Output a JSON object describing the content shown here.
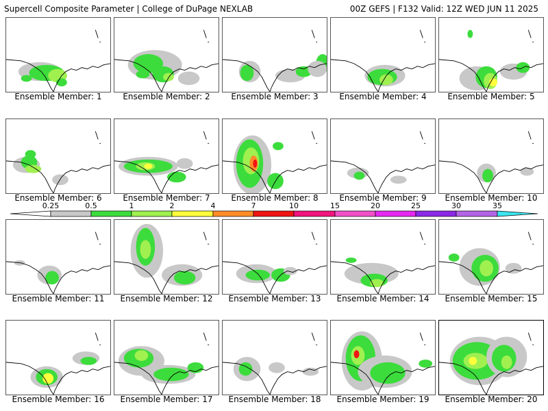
{
  "header": {
    "left": "Supercell Composite Parameter | College of DuPage NEXLAB",
    "right": "00Z GEFS | F132 Valid: 12Z WED JUN 11 2025"
  },
  "colorbar": {
    "ticks": [
      "0.25",
      "0.5",
      "1",
      "2",
      "4",
      "7",
      "10",
      "15",
      "20",
      "25",
      "30",
      "35"
    ],
    "colors": [
      "#ffffff",
      "#c8c8c8",
      "#3cdc3c",
      "#a0f050",
      "#ffff3c",
      "#ff8c28",
      "#f01414",
      "#f0147c",
      "#f050c8",
      "#e628f0",
      "#8c28e6",
      "#b464e6",
      "#3ce6f0"
    ]
  },
  "panels": [
    {
      "label": "Ensemble Member: 1",
      "selected": false
    },
    {
      "label": "Ensemble Member: 2",
      "selected": false
    },
    {
      "label": "Ensemble Member: 3",
      "selected": false
    },
    {
      "label": "Ensemble Member: 4",
      "selected": false
    },
    {
      "label": "Ensemble Member: 5",
      "selected": false
    },
    {
      "label": "Ensemble Member: 6",
      "selected": false
    },
    {
      "label": "Ensemble Member: 7",
      "selected": false
    },
    {
      "label": "Ensemble Member: 8",
      "selected": false
    },
    {
      "label": "Ensemble Member: 9",
      "selected": false
    },
    {
      "label": "Ensemble Member: 10",
      "selected": false
    },
    {
      "label": "Ensemble Member: 11",
      "selected": false
    },
    {
      "label": "Ensemble Member: 12",
      "selected": false
    },
    {
      "label": "Ensemble Member: 13",
      "selected": false
    },
    {
      "label": "Ensemble Member: 14",
      "selected": false
    },
    {
      "label": "Ensemble Member: 15",
      "selected": false
    },
    {
      "label": "Ensemble Member: 16",
      "selected": false
    },
    {
      "label": "Ensemble Member: 17",
      "selected": false
    },
    {
      "label": "Ensemble Member: 18",
      "selected": false
    },
    {
      "label": "Ensemble Member: 19",
      "selected": false
    },
    {
      "label": "Ensemble Member: 20",
      "selected": true
    }
  ]
}
